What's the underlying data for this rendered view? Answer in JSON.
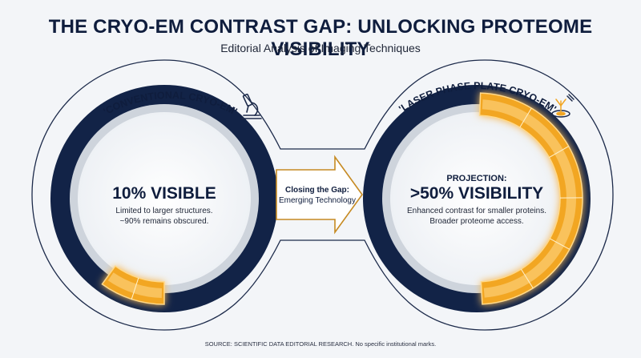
{
  "header": {
    "title": "THE CRYO-EM CONTRAST GAP: UNLOCKING PROTEOME VISIBILITY",
    "subtitle": "Editorial Analysis of Imaging Techniques"
  },
  "left_panel": {
    "label": "'CONVENTIONAL CRYO-EM'",
    "icon": "microscope-icon",
    "headline": "10% VISIBLE",
    "lines": [
      "Limited to larger structures.",
      "~90% remains obscured."
    ],
    "visible_fraction": 0.1
  },
  "connector": {
    "lines": [
      "Closing the Gap:",
      "Emerging Technology"
    ]
  },
  "right_panel": {
    "label": "'LASER PHASE PLATE CRYO-EM'",
    "icon": "laser-plate-icon",
    "kicker": "PROJECTION:",
    "headline": ">50% VISIBILITY",
    "lines": [
      "Enhanced contrast for smaller proteins.",
      "Broader proteome access."
    ],
    "visible_fraction": 0.5
  },
  "footer": {
    "source": "SOURCE: SCIENTIFIC DATA EDITORIAL RESEARCH. No specific institutional marks."
  },
  "colors": {
    "navy": "#122347",
    "gold": "#f2a623",
    "gold_light": "#ffd98a",
    "ring_gray": "#d7dce3",
    "background": "#f3f5f8"
  }
}
